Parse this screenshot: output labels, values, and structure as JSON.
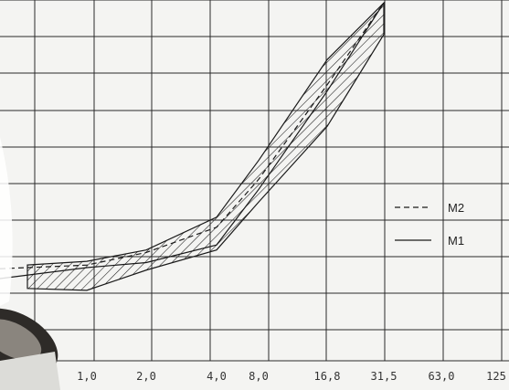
{
  "chart_data": {
    "type": "line",
    "title": "",
    "xlabel": "",
    "ylabel": "",
    "x_tick_labels": [
      "1,0",
      "2,0",
      "4,0",
      "8,0",
      "16,8",
      "31,5",
      "63,0",
      "125"
    ],
    "grid": true,
    "legend_position": "right",
    "series": [
      {
        "name": "M2",
        "line_style": "dashed",
        "x": [
          "1,0",
          "2,0",
          "4,0",
          "8,0",
          "16,8",
          "31,5"
        ],
        "values": [
          52,
          62,
          82,
          120,
          195,
          260
        ]
      },
      {
        "name": "M1",
        "line_style": "solid",
        "x": [
          "1,0",
          "2,0",
          "4,0",
          "8,0",
          "16,8",
          "31,5"
        ],
        "values": [
          50,
          54,
          68,
          112,
          190,
          260
        ]
      }
    ],
    "band": {
      "style": "hatched",
      "x": [
        "1,0",
        "2,0",
        "4,0",
        "8,0",
        "16,8",
        "31,5"
      ],
      "upper": [
        55,
        64,
        90,
        135,
        215,
        260
      ],
      "lower": [
        32,
        48,
        64,
        102,
        162,
        235
      ]
    }
  },
  "colors": {
    "line": "#1a1a1a",
    "grid": "#2a2a2a",
    "background": "#f4f4f2"
  },
  "legend": [
    {
      "label": "M2",
      "style": "dashed"
    },
    {
      "label": "M1",
      "style": "solid"
    }
  ]
}
